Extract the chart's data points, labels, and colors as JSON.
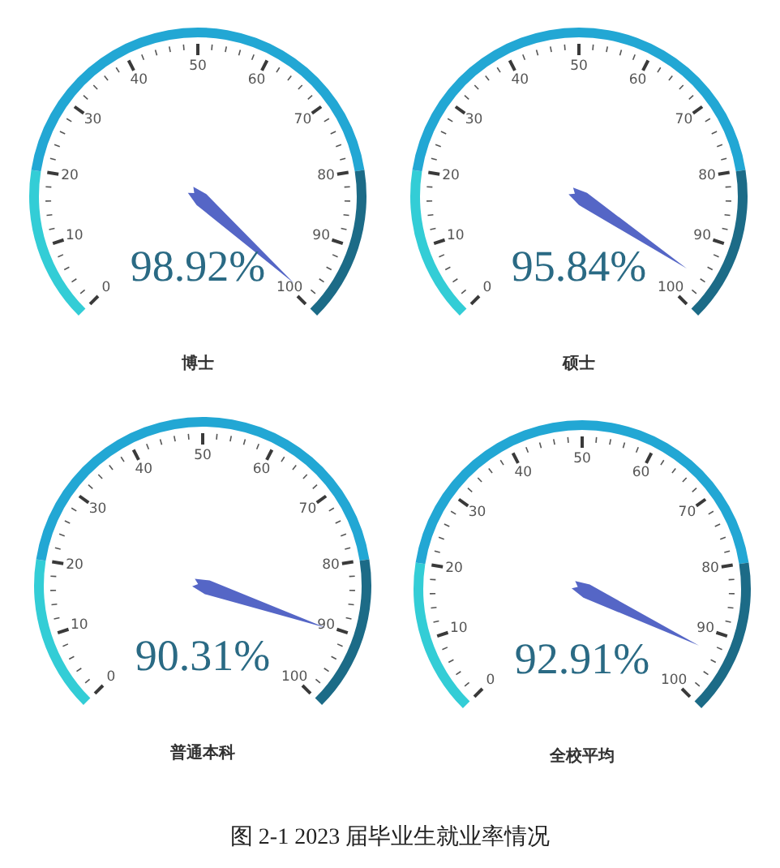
{
  "chart_data": [
    {
      "type": "other",
      "title": "博士",
      "values": [
        98.92
      ],
      "value_labels": [
        "98.92%"
      ],
      "color": "#5566c6",
      "annotations": [
        "0",
        "10",
        "20",
        "30",
        "40",
        "50",
        "60",
        "70",
        "80",
        "90",
        "100"
      ]
    },
    {
      "type": "other",
      "title": "硕士",
      "values": [
        95.84
      ],
      "value_labels": [
        "95.84%"
      ],
      "color": "#5566c6",
      "annotations": [
        "0",
        "10",
        "20",
        "30",
        "40",
        "50",
        "60",
        "70",
        "80",
        "90",
        "100"
      ]
    },
    {
      "type": "other",
      "title": "普通本科",
      "values": [
        90.31
      ],
      "value_labels": [
        "90.31%"
      ],
      "color": "#5566c6",
      "annotations": [
        "0",
        "10",
        "20",
        "30",
        "40",
        "50",
        "60",
        "70",
        "80",
        "90",
        "100"
      ]
    },
    {
      "type": "other",
      "title": "全校平均",
      "values": [
        92.91
      ],
      "value_labels": [
        "92.91%"
      ],
      "color": "#5566c6",
      "annotations": [
        "0",
        "10",
        "20",
        "30",
        "40",
        "50",
        "60",
        "70",
        "80",
        "90",
        "100"
      ]
    },
    {
      "type": "other",
      "annotations": [
        "图 2-1 2023 届毕业生就业率情况"
      ]
    }
  ]
}
